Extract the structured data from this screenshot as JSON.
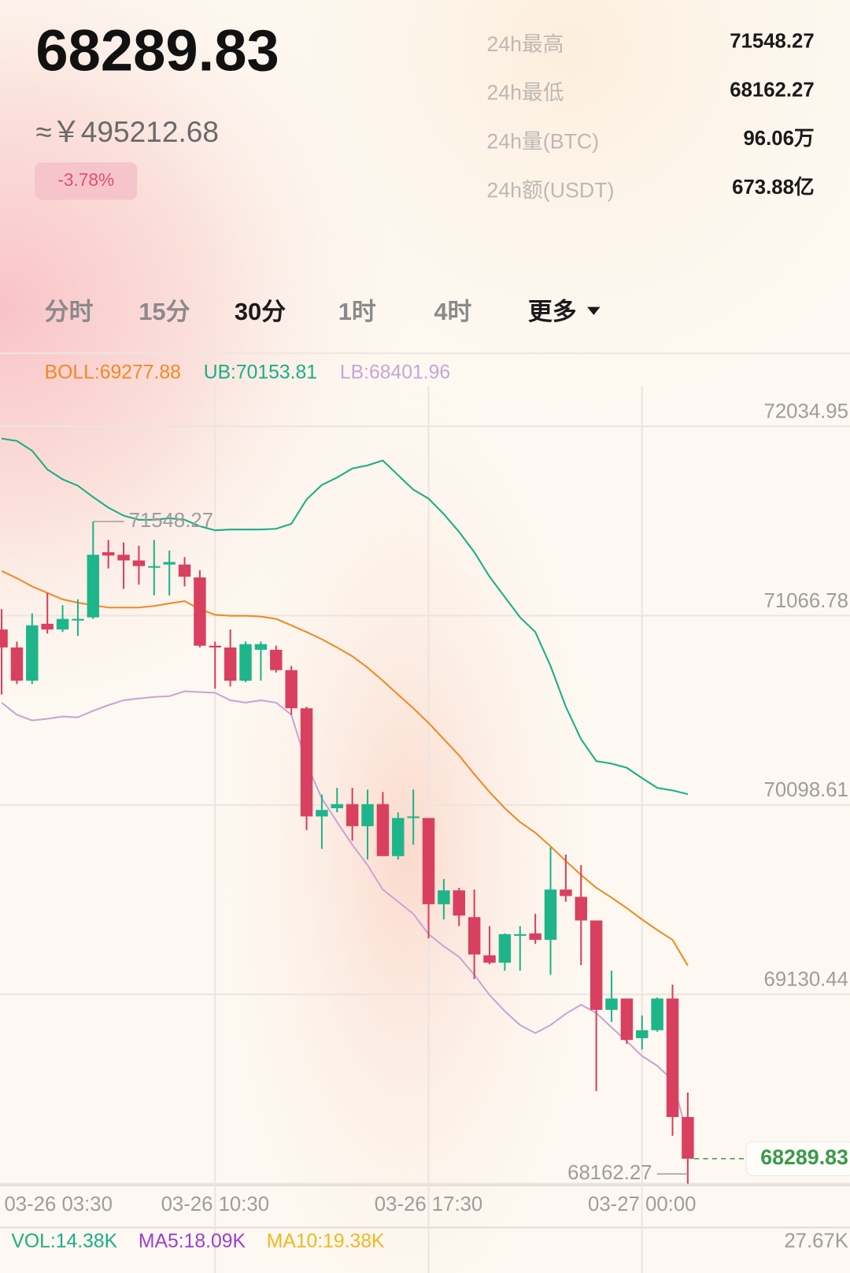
{
  "header": {
    "price": "68289.83",
    "cny_price": "≈￥495212.68",
    "change": "-3.78%",
    "stats": [
      {
        "label": "24h最高",
        "value": "71548.27"
      },
      {
        "label": "24h最低",
        "value": "68162.27"
      },
      {
        "label": "24h量(BTC)",
        "value": "96.06万"
      },
      {
        "label": "24h额(USDT)",
        "value": "673.88亿"
      }
    ]
  },
  "tabs": [
    "分时",
    "15分",
    "30分",
    "1时",
    "4时",
    "更多"
  ],
  "chart_data": {
    "type": "candlestick",
    "categories": [
      "03-26 03:30",
      null,
      null,
      null,
      null,
      null,
      null,
      null,
      null,
      null,
      null,
      null,
      null,
      null,
      "03-26 10:30",
      null,
      null,
      null,
      null,
      null,
      null,
      null,
      null,
      null,
      null,
      null,
      null,
      null,
      "03-26 17:30",
      null,
      null,
      null,
      null,
      null,
      null,
      null,
      null,
      null,
      null,
      null,
      null,
      null,
      "03-27 00:00",
      null,
      null,
      null
    ],
    "open": [
      70996,
      70904,
      70734,
      71025,
      70996,
      71042,
      71058,
      71391,
      71378,
      71349,
      71312,
      71328,
      71328,
      71262,
      70913,
      70904,
      70734,
      70892,
      70892,
      70788,
      70593,
      70040,
      70082,
      70103,
      69990,
      70103,
      69837,
      70032,
      70032,
      69591,
      69662,
      69525,
      69330,
      69292,
      69430,
      69442,
      69409,
      69666,
      69629,
      69508,
      69051,
      69109,
      68906,
      68947,
      69109,
      68503
    ],
    "high": [
      71100,
      70934,
      71079,
      71183,
      71120,
      71150,
      71548.27,
      71453,
      71441,
      71424,
      71453,
      71399,
      71366,
      71299,
      70934,
      70996,
      70934,
      70934,
      70913,
      70809,
      70601,
      70152,
      70186,
      70186,
      70177,
      70165,
      70061,
      70177,
      70032,
      69720,
      69675,
      69666,
      69479,
      69442,
      69479,
      69542,
      69882,
      69845,
      69791,
      69508,
      69251,
      69109,
      69022,
      69114,
      69180,
      68628
    ],
    "low": [
      70663,
      70717,
      70717,
      70975,
      70983,
      70963,
      71050,
      71308,
      71204,
      71225,
      71170,
      71170,
      71216,
      70904,
      70693,
      70705,
      70726,
      70734,
      70776,
      70560,
      69970,
      69874,
      70061,
      69916,
      69820,
      69837,
      69820,
      69895,
      69417,
      69513,
      69479,
      69209,
      69284,
      69251,
      69251,
      69388,
      69230,
      69604,
      69280,
      68636,
      68989,
      68877,
      68848,
      68939,
      68407,
      68162.27
    ],
    "close": [
      70904,
      70734,
      71017,
      70996,
      71050,
      71050,
      71378,
      71374,
      71349,
      71320,
      71320,
      71341,
      71266,
      70913,
      70904,
      70734,
      70921,
      70921,
      70788,
      70593,
      70040,
      70073,
      70103,
      69990,
      70103,
      69837,
      70032,
      70040,
      69591,
      69662,
      69533,
      69334,
      69292,
      69438,
      69438,
      69409,
      69666,
      69633,
      69508,
      69051,
      69109,
      68897,
      68947,
      69109,
      68503,
      68289.83
    ],
    "up_color": "#1fb58a",
    "down_color": "#d9405f",
    "bands": [
      {
        "name": "BOLL:69277.88",
        "color": "#f08a24",
        "values": [
          71295,
          71258,
          71216,
          71183,
          71150,
          71133,
          71120,
          71108,
          71108,
          71108,
          71116,
          71129,
          71141,
          71100,
          71071,
          71066,
          71066,
          71062,
          71050,
          71017,
          70983,
          70946,
          70904,
          70859,
          70801,
          70734,
          70663,
          70593,
          70518,
          70435,
          70352,
          70256,
          70165,
          70082,
          70011,
          69957,
          69887,
          69812,
          69741,
          69675,
          69625,
          69571,
          69513,
          69459,
          69409,
          69277.88
        ]
      },
      {
        "name": "UB:70153.81",
        "color": "#1aae87",
        "values": [
          71972,
          71960,
          71910,
          71814,
          71764,
          71731,
          71673,
          71619,
          71578,
          71557,
          71557,
          71565,
          71557,
          71524,
          71503,
          71507,
          71507,
          71507,
          71511,
          71536,
          71661,
          71735,
          71773,
          71819,
          71835,
          71860,
          71785,
          71711,
          71665,
          71586,
          71495,
          71391,
          71266,
          71162,
          71058,
          70983,
          70809,
          70601,
          70435,
          70323,
          70310,
          70289,
          70236,
          70186,
          70173,
          70153.81
        ]
      },
      {
        "name": "LB:68401.96",
        "color": "#c7a6d6",
        "values": [
          70622,
          70560,
          70531,
          70539,
          70551,
          70547,
          70580,
          70609,
          70634,
          70643,
          70651,
          70655,
          70680,
          70676,
          70672,
          70634,
          70622,
          70634,
          70622,
          70560,
          70310,
          70132,
          70011,
          69895,
          69791,
          69666,
          69604,
          69542,
          69438,
          69376,
          69322,
          69230,
          69127,
          69044,
          68973,
          68932,
          68973,
          69031,
          69077,
          69035,
          68961,
          68890,
          68815,
          68765,
          68691,
          68401.96
        ]
      }
    ],
    "ylim": [
      68162.27,
      72242.7
    ],
    "yticks": [
      72034.95,
      71066.78,
      70098.61,
      69130.44,
      68162.27
    ],
    "grid": true,
    "volume_panel": {
      "labels": [
        {
          "text": "VOL:14.38K",
          "color": "#1aae87"
        },
        {
          "text": "MA5:18.09K",
          "color": "#9b3fd0"
        },
        {
          "text": "MA10:19.38K",
          "color": "#f0b820"
        }
      ],
      "scale_label": "27.67K"
    }
  }
}
